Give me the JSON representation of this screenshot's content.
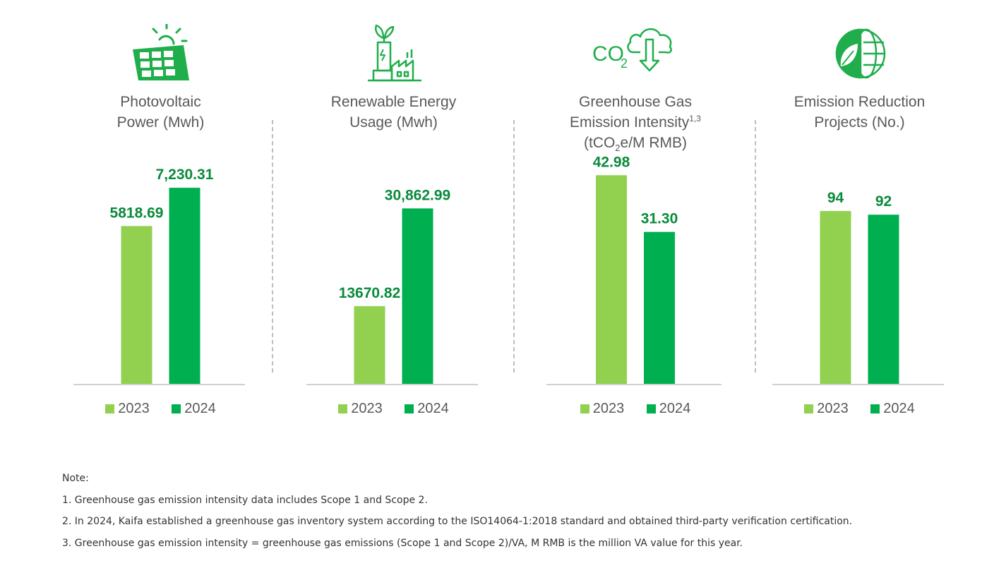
{
  "colors": {
    "y2023": "#92d050",
    "y2024": "#00b050",
    "value_label": "#0a8a3c",
    "icon": "#1fae4b"
  },
  "legend": {
    "y2023": "2023",
    "y2024": "2024"
  },
  "panels": [
    {
      "icon": "solar-panel-icon",
      "title": {
        "line1": "Photovoltaic",
        "line2": "Power (Mwh)",
        "line3": ""
      },
      "labels": [
        "5818.69",
        "7,230.31"
      ]
    },
    {
      "icon": "renewable-factory-icon",
      "title": {
        "line1": "Renewable Energy",
        "line2": "Usage (Mwh)",
        "line3": ""
      },
      "labels": [
        "13670.82",
        "30,862.99"
      ]
    },
    {
      "icon": "co2-cloud-icon",
      "title": {
        "line1": "Greenhouse Gas",
        "line2": "Emission Intensity",
        "line2_sup": "1,3",
        "line3_a": "(tCO",
        "line3_sub": "2",
        "line3_b": "e/M RMB)"
      },
      "labels": [
        "42.98",
        "31.30"
      ]
    },
    {
      "icon": "leaf-globe-icon",
      "title": {
        "line1": "Emission Reduction",
        "line2": "Projects (No.)",
        "line3": ""
      },
      "labels": [
        "94",
        "92"
      ]
    }
  ],
  "chart_data": [
    {
      "type": "bar",
      "title": "Photovoltaic Power (Mwh)",
      "categories": [
        "2023",
        "2024"
      ],
      "values": [
        5818.69,
        7230.31
      ],
      "ylim": [
        0,
        8950
      ]
    },
    {
      "type": "bar",
      "title": "Renewable Energy Usage (Mwh)",
      "categories": [
        "2023",
        "2024"
      ],
      "values": [
        13670.82,
        30862.99
      ],
      "ylim": [
        0,
        42700
      ]
    },
    {
      "type": "bar",
      "title": "Greenhouse Gas Emission Intensity (tCO2e/M RMB)",
      "categories": [
        "2023",
        "2024"
      ],
      "values": [
        42.98,
        31.3
      ],
      "ylim": [
        0,
        50
      ]
    },
    {
      "type": "bar",
      "title": "Emission Reduction Projects (No.)",
      "categories": [
        "2023",
        "2024"
      ],
      "values": [
        94,
        92
      ],
      "ylim": [
        0,
        132
      ]
    }
  ],
  "notes": {
    "heading": "Note:",
    "items": [
      "1. Greenhouse gas emission intensity data includes Scope 1 and Scope 2.",
      "2. In 2024, Kaifa established a greenhouse gas inventory system according to the ISO14064-1:2018 standard and obtained third-party verification certification.",
      "3. Greenhouse gas emission intensity = greenhouse gas emissions (Scope 1 and Scope 2)/VA, M RMB is the million VA value for this year."
    ]
  }
}
